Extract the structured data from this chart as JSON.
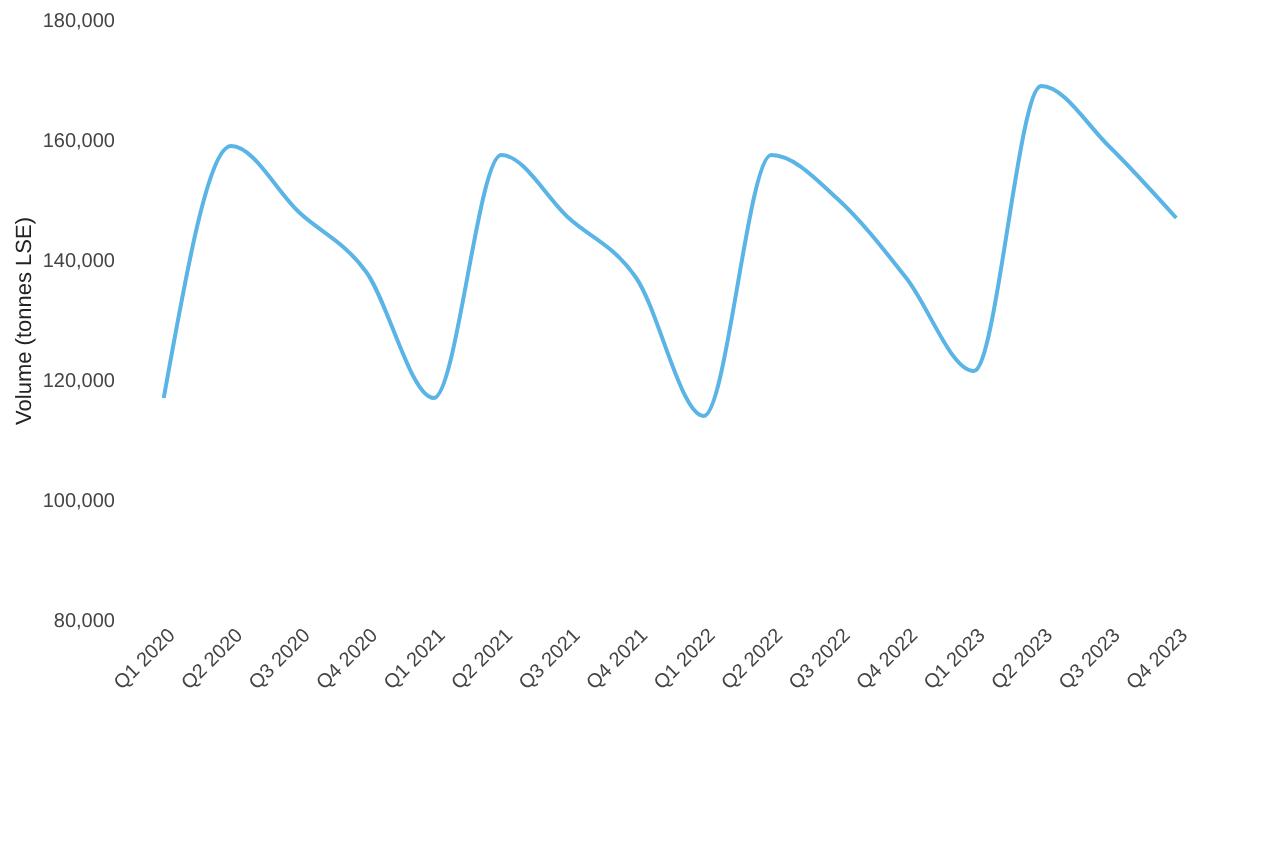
{
  "chart_data": {
    "type": "line",
    "ylabel": "Volume (tonnes LSE)",
    "categories": [
      "Q1 2020",
      "Q2 2020",
      "Q3 2020",
      "Q4 2020",
      "Q1 2021",
      "Q2 2021",
      "Q3 2021",
      "Q4 2021",
      "Q1 2022",
      "Q2 2022",
      "Q3 2022",
      "Q4 2022",
      "Q1 2023",
      "Q2 2023",
      "Q3 2023",
      "Q4 2023"
    ],
    "series": [
      {
        "color": "#5ab4e5",
        "values": [
          117000,
          159000,
          148000,
          138000,
          117000,
          157500,
          147000,
          137000,
          114000,
          157500,
          150000,
          137000,
          121500,
          169000,
          159000,
          147000
        ]
      }
    ],
    "ylim": [
      80000,
      180000
    ],
    "yticks": [
      {
        "value": 80000,
        "label": "80,000"
      },
      {
        "value": 100000,
        "label": "100,000"
      },
      {
        "value": 120000,
        "label": "120,000"
      },
      {
        "value": 140000,
        "label": "140,000"
      },
      {
        "value": 160000,
        "label": "160,000"
      },
      {
        "value": 180000,
        "label": "180,000"
      }
    ],
    "grid": false,
    "marker": "none",
    "line_style": "solid"
  }
}
